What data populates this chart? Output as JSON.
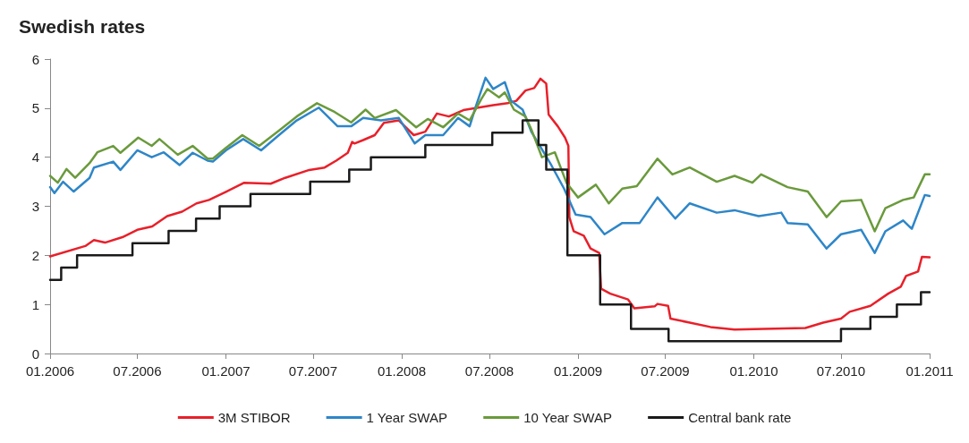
{
  "chart_data": {
    "type": "line",
    "title": "Swedish rates",
    "legend": "bottom",
    "grid": false,
    "marker": "none",
    "line_style": "solid",
    "xlim": [
      "2006-01-01",
      "2011-01-01"
    ],
    "xticks": [
      {
        "value": "2006-01",
        "label": "01.2006"
      },
      {
        "value": "2006-07",
        "label": "07.2006"
      },
      {
        "value": "2007-01",
        "label": "01.2007"
      },
      {
        "value": "2007-07",
        "label": "07.2007"
      },
      {
        "value": "2008-01",
        "label": "01.2008"
      },
      {
        "value": "2008-07",
        "label": "07.2008"
      },
      {
        "value": "2009-01",
        "label": "01.2009"
      },
      {
        "value": "2009-07",
        "label": "07.2009"
      },
      {
        "value": "2010-01",
        "label": "01.2010"
      },
      {
        "value": "2010-07",
        "label": "07.2010"
      },
      {
        "value": "2011-01",
        "label": "01.2011"
      }
    ],
    "ylim": [
      0,
      6
    ],
    "yticks": [
      0,
      1,
      2,
      3,
      4,
      5,
      6
    ],
    "series": [
      {
        "name": "3M STIBOR",
        "color": "#e8202a",
        "x": [
          "2006-01-01",
          "2006-03-15",
          "2006-04-02",
          "2006-04-25",
          "2006-05-31",
          "2006-07-01",
          "2006-08-01",
          "2006-09-01",
          "2006-10-02",
          "2006-11-01",
          "2006-11-27",
          "2007-01-02",
          "2007-02-08",
          "2007-04-04",
          "2007-05-04",
          "2007-06-23",
          "2007-07-25",
          "2007-08-18",
          "2007-09-11",
          "2007-09-20",
          "2007-09-25",
          "2007-10-13",
          "2007-11-06",
          "2007-11-25",
          "2007-12-26",
          "2008-01-26",
          "2008-02-19",
          "2008-03-14",
          "2008-04-08",
          "2008-05-08",
          "2008-06-08",
          "2008-07-09",
          "2008-08-08",
          "2008-08-26",
          "2008-09-14",
          "2008-10-02",
          "2008-10-15",
          "2008-10-27",
          "2008-11-01",
          "2008-11-20",
          "2008-12-05",
          "2008-12-12",
          "2008-12-14",
          "2008-12-23",
          "2009-01-13",
          "2009-01-27",
          "2009-02-14",
          "2009-02-18",
          "2009-03-09",
          "2009-04-15",
          "2009-04-28",
          "2009-06-09",
          "2009-06-15",
          "2009-07-07",
          "2009-07-12",
          "2009-08-21",
          "2009-10-03",
          "2009-11-22",
          "2010-01-22",
          "2010-04-18",
          "2010-05-25",
          "2010-07-01",
          "2010-07-19",
          "2010-08-31",
          "2010-10-07",
          "2010-11-02",
          "2010-11-13",
          "2010-12-08",
          "2010-12-16",
          "2011-01-01"
        ],
        "values": [
          1.98,
          2.19,
          2.31,
          2.26,
          2.37,
          2.52,
          2.59,
          2.8,
          2.89,
          3.06,
          3.13,
          3.3,
          3.48,
          3.46,
          3.58,
          3.74,
          3.79,
          3.93,
          4.09,
          4.31,
          4.28,
          4.35,
          4.45,
          4.7,
          4.75,
          4.45,
          4.52,
          4.89,
          4.83,
          4.96,
          5.01,
          5.06,
          5.1,
          5.15,
          5.36,
          5.41,
          5.6,
          5.5,
          4.87,
          4.63,
          4.4,
          4.23,
          2.78,
          2.49,
          2.4,
          2.14,
          2.05,
          1.32,
          1.22,
          1.1,
          0.92,
          0.96,
          1.01,
          0.97,
          0.71,
          0.63,
          0.54,
          0.49,
          0.5,
          0.52,
          0.63,
          0.71,
          0.85,
          0.97,
          1.22,
          1.36,
          1.58,
          1.67,
          1.97,
          1.96
        ]
      },
      {
        "name": "1 Year SWAP",
        "color": "#2e86c8",
        "x": [
          "2006-01-01",
          "2006-01-10",
          "2006-01-28",
          "2006-02-19",
          "2006-03-24",
          "2006-04-02",
          "2006-05-12",
          "2006-05-27",
          "2006-07-01",
          "2006-07-31",
          "2006-08-25",
          "2006-09-27",
          "2006-10-24",
          "2006-11-24",
          "2006-12-05",
          "2007-01-01",
          "2007-02-06",
          "2007-03-15",
          "2007-04-21",
          "2007-05-28",
          "2007-07-13",
          "2007-08-21",
          "2007-09-18",
          "2007-10-13",
          "2007-11-19",
          "2007-12-26",
          "2008-01-28",
          "2008-02-19",
          "2008-03-27",
          "2008-04-27",
          "2008-05-21",
          "2008-06-03",
          "2008-06-23",
          "2008-07-09",
          "2008-08-02",
          "2008-08-15",
          "2008-09-08",
          "2008-09-26",
          "2008-10-14",
          "2008-11-07",
          "2008-12-03",
          "2008-12-27",
          "2009-01-27",
          "2009-02-25",
          "2009-04-03",
          "2009-05-09",
          "2009-06-15",
          "2009-07-22",
          "2009-08-21",
          "2009-10-16",
          "2009-11-22",
          "2010-01-11",
          "2010-02-27",
          "2010-03-12",
          "2010-04-23",
          "2010-06-01",
          "2010-07-01",
          "2010-08-12",
          "2010-09-09",
          "2010-10-01",
          "2010-11-07",
          "2010-11-25",
          "2010-12-22",
          "2011-01-01"
        ],
        "values": [
          3.39,
          3.27,
          3.5,
          3.3,
          3.58,
          3.79,
          3.91,
          3.74,
          4.14,
          4.0,
          4.1,
          3.84,
          4.09,
          3.93,
          3.91,
          4.14,
          4.37,
          4.14,
          4.45,
          4.75,
          5.01,
          4.63,
          4.63,
          4.8,
          4.75,
          4.8,
          4.28,
          4.45,
          4.45,
          4.8,
          4.63,
          5.04,
          5.62,
          5.39,
          5.53,
          5.15,
          4.97,
          4.52,
          4.23,
          3.83,
          3.36,
          2.83,
          2.78,
          2.43,
          2.66,
          2.66,
          3.18,
          2.75,
          3.06,
          2.87,
          2.92,
          2.8,
          2.87,
          2.66,
          2.63,
          2.14,
          2.43,
          2.52,
          2.05,
          2.49,
          2.71,
          2.54,
          3.23,
          3.21
        ]
      },
      {
        "name": "10 Year SWAP",
        "color": "#6a9a3c",
        "x": [
          "2006-01-01",
          "2006-01-17",
          "2006-02-04",
          "2006-02-22",
          "2006-03-24",
          "2006-04-09",
          "2006-05-12",
          "2006-05-27",
          "2006-07-03",
          "2006-07-31",
          "2006-08-16",
          "2006-09-23",
          "2006-10-24",
          "2006-11-24",
          "2006-12-05",
          "2007-01-01",
          "2007-02-04",
          "2007-03-11",
          "2007-04-21",
          "2007-05-28",
          "2007-07-09",
          "2007-08-15",
          "2007-09-18",
          "2007-10-18",
          "2007-11-06",
          "2007-12-20",
          "2008-01-31",
          "2008-02-24",
          "2008-03-27",
          "2008-04-27",
          "2008-05-21",
          "2008-06-14",
          "2008-06-27",
          "2008-07-21",
          "2008-08-02",
          "2008-08-21",
          "2008-09-14",
          "2008-09-26",
          "2008-10-18",
          "2008-11-14",
          "2008-12-08",
          "2009-01-01",
          "2009-02-07",
          "2009-03-06",
          "2009-04-03",
          "2009-05-03",
          "2009-06-15",
          "2009-07-16",
          "2009-08-21",
          "2009-10-16",
          "2009-11-22",
          "2009-12-29",
          "2010-01-16",
          "2010-03-12",
          "2010-04-23",
          "2010-06-01",
          "2010-07-01",
          "2010-08-12",
          "2010-09-09",
          "2010-10-01",
          "2010-11-07",
          "2010-11-29",
          "2010-12-22",
          "2011-01-01"
        ],
        "values": [
          3.62,
          3.48,
          3.76,
          3.58,
          3.88,
          4.1,
          4.23,
          4.09,
          4.4,
          4.23,
          4.37,
          4.05,
          4.23,
          3.97,
          3.97,
          4.19,
          4.45,
          4.23,
          4.54,
          4.83,
          5.1,
          4.92,
          4.71,
          4.97,
          4.8,
          4.96,
          4.61,
          4.78,
          4.61,
          4.89,
          4.75,
          5.18,
          5.39,
          5.22,
          5.32,
          4.97,
          4.83,
          4.57,
          4.0,
          4.1,
          3.48,
          3.18,
          3.44,
          3.06,
          3.36,
          3.41,
          3.97,
          3.65,
          3.79,
          3.5,
          3.62,
          3.48,
          3.65,
          3.39,
          3.3,
          2.78,
          3.1,
          3.13,
          2.49,
          2.96,
          3.13,
          3.18,
          3.65,
          3.65
        ]
      },
      {
        "name": "Central bank rate",
        "color": "#1a1a1a",
        "type": "step",
        "x": [
          "2006-01-01",
          "2006-01-24",
          "2006-02-26",
          "2006-06-21",
          "2006-09-04",
          "2006-10-31",
          "2006-12-19",
          "2007-02-21",
          "2007-06-25",
          "2007-09-14",
          "2007-10-29",
          "2008-02-19",
          "2008-07-07",
          "2008-09-08",
          "2008-10-11",
          "2008-10-27",
          "2008-12-10",
          "2009-02-16",
          "2009-04-21",
          "2009-07-08",
          "2010-07-01",
          "2010-08-31",
          "2010-10-25",
          "2010-12-14",
          "2011-01-01"
        ],
        "values": [
          1.5,
          1.75,
          2.0,
          2.25,
          2.5,
          2.75,
          3.0,
          3.25,
          3.5,
          3.75,
          4.0,
          4.25,
          4.5,
          4.75,
          4.25,
          3.75,
          2.0,
          1.0,
          0.5,
          0.25,
          0.5,
          0.75,
          1.0,
          1.25,
          1.25
        ]
      }
    ]
  }
}
